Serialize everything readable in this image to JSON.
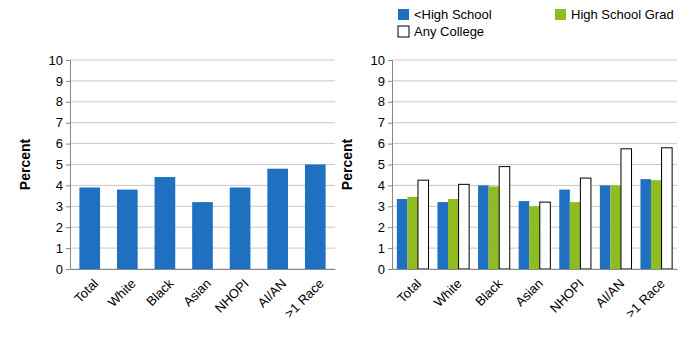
{
  "chart_data": [
    {
      "type": "bar",
      "y_label": "Percent",
      "categories": [
        "Total",
        "White",
        "Black",
        "Asian",
        "NHOPI",
        "AI/AN",
        ">1 Race"
      ],
      "values": [
        3.9,
        3.8,
        4.4,
        3.2,
        3.9,
        4.8,
        5.0
      ],
      "color": "#1f70c1",
      "ylim": [
        0,
        10
      ],
      "yticks": [
        0,
        1,
        2,
        3,
        4,
        5,
        6,
        7,
        8,
        9,
        10
      ],
      "grid": true
    },
    {
      "type": "bar",
      "y_label": "Percent",
      "categories": [
        "Total",
        "White",
        "Black",
        "Asian",
        "NHOPI",
        "AI/AN",
        ">1 Race"
      ],
      "series": [
        {
          "name": "<High School",
          "color": "#1f70c1",
          "values": [
            3.35,
            3.2,
            4.0,
            3.25,
            3.8,
            4.0,
            4.3
          ]
        },
        {
          "name": "High School Grad",
          "color": "#8fbc21",
          "values": [
            3.45,
            3.35,
            3.95,
            3.0,
            3.2,
            4.0,
            4.25
          ]
        },
        {
          "name": "Any College",
          "color": "#ffffff",
          "values": [
            4.25,
            4.05,
            4.9,
            3.2,
            4.35,
            5.75,
            5.8
          ]
        }
      ],
      "ylim": [
        0,
        10
      ],
      "yticks": [
        0,
        1,
        2,
        3,
        4,
        5,
        6,
        7,
        8,
        9,
        10
      ],
      "grid": true,
      "legend": "top"
    }
  ]
}
